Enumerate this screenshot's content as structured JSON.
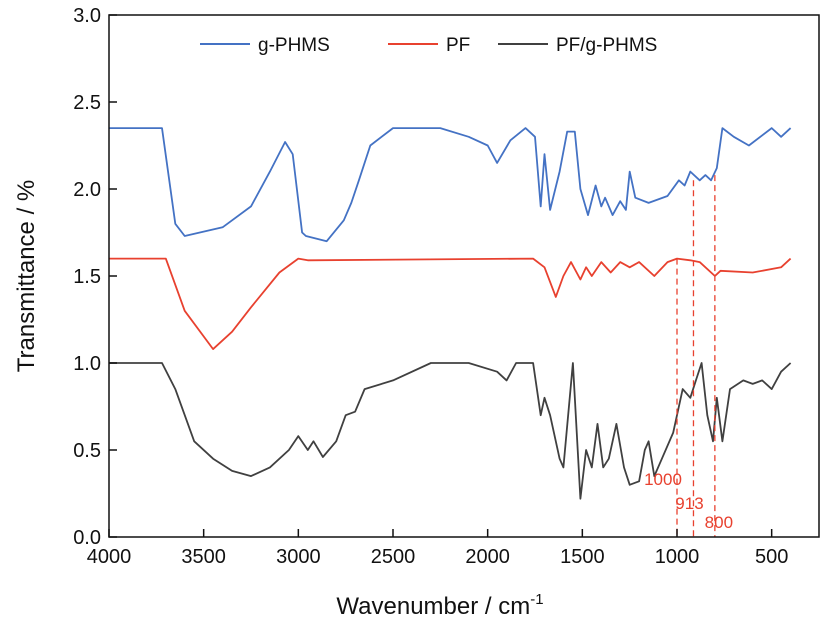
{
  "chart_data": {
    "type": "line",
    "title": "",
    "xlabel": "Wavenumber / cm",
    "xlabel_sup": "-1",
    "ylabel": "Transmittance / %",
    "xlim": [
      4000,
      250
    ],
    "ylim": [
      0,
      3.0
    ],
    "xticks": [
      "4000",
      "3500",
      "3000",
      "2500",
      "2000",
      "1500",
      "1000",
      "500"
    ],
    "xtick_values": [
      4000,
      3500,
      3000,
      2500,
      2000,
      1500,
      1000,
      500
    ],
    "yticks": [
      "0.0",
      "0.5",
      "1.0",
      "1.5",
      "2.0",
      "2.5",
      "3.0"
    ],
    "ytick_values": [
      0,
      0.5,
      1.0,
      1.5,
      2.0,
      2.5,
      3.0
    ],
    "legend_position": "top-center",
    "series": [
      {
        "name": "g-PHMS",
        "color": "#4472c4",
        "points": [
          [
            4000,
            2.35
          ],
          [
            3720,
            2.35
          ],
          [
            3650,
            1.8
          ],
          [
            3600,
            1.73
          ],
          [
            3400,
            1.78
          ],
          [
            3250,
            1.9
          ],
          [
            3150,
            2.1
          ],
          [
            3070,
            2.27
          ],
          [
            3030,
            2.2
          ],
          [
            2980,
            1.75
          ],
          [
            2960,
            1.73
          ],
          [
            2850,
            1.7
          ],
          [
            2760,
            1.82
          ],
          [
            2720,
            1.92
          ],
          [
            2680,
            2.05
          ],
          [
            2620,
            2.25
          ],
          [
            2500,
            2.35
          ],
          [
            2250,
            2.35
          ],
          [
            2100,
            2.3
          ],
          [
            2000,
            2.25
          ],
          [
            1950,
            2.15
          ],
          [
            1880,
            2.28
          ],
          [
            1800,
            2.35
          ],
          [
            1750,
            2.3
          ],
          [
            1720,
            1.9
          ],
          [
            1700,
            2.2
          ],
          [
            1670,
            1.88
          ],
          [
            1620,
            2.1
          ],
          [
            1580,
            2.33
          ],
          [
            1540,
            2.33
          ],
          [
            1510,
            2.0
          ],
          [
            1470,
            1.85
          ],
          [
            1430,
            2.02
          ],
          [
            1400,
            1.9
          ],
          [
            1380,
            1.95
          ],
          [
            1340,
            1.85
          ],
          [
            1300,
            1.93
          ],
          [
            1270,
            1.88
          ],
          [
            1250,
            2.1
          ],
          [
            1220,
            1.95
          ],
          [
            1150,
            1.92
          ],
          [
            1050,
            1.96
          ],
          [
            990,
            2.05
          ],
          [
            960,
            2.02
          ],
          [
            930,
            2.1
          ],
          [
            880,
            2.05
          ],
          [
            850,
            2.08
          ],
          [
            820,
            2.05
          ],
          [
            790,
            2.12
          ],
          [
            760,
            2.35
          ],
          [
            700,
            2.3
          ],
          [
            620,
            2.25
          ],
          [
            500,
            2.35
          ],
          [
            450,
            2.3
          ],
          [
            400,
            2.35
          ]
        ]
      },
      {
        "name": "PF",
        "color": "#e8412f",
        "points": [
          [
            4000,
            1.6
          ],
          [
            3700,
            1.6
          ],
          [
            3600,
            1.3
          ],
          [
            3450,
            1.08
          ],
          [
            3350,
            1.18
          ],
          [
            3250,
            1.32
          ],
          [
            3100,
            1.52
          ],
          [
            3000,
            1.6
          ],
          [
            2950,
            1.59
          ],
          [
            1760,
            1.6
          ],
          [
            1700,
            1.55
          ],
          [
            1640,
            1.38
          ],
          [
            1600,
            1.5
          ],
          [
            1560,
            1.58
          ],
          [
            1510,
            1.48
          ],
          [
            1480,
            1.55
          ],
          [
            1450,
            1.5
          ],
          [
            1400,
            1.58
          ],
          [
            1350,
            1.52
          ],
          [
            1300,
            1.58
          ],
          [
            1250,
            1.55
          ],
          [
            1200,
            1.58
          ],
          [
            1120,
            1.5
          ],
          [
            1050,
            1.58
          ],
          [
            1000,
            1.6
          ],
          [
            930,
            1.59
          ],
          [
            880,
            1.58
          ],
          [
            800,
            1.5
          ],
          [
            770,
            1.53
          ],
          [
            600,
            1.52
          ],
          [
            450,
            1.55
          ],
          [
            400,
            1.6
          ]
        ]
      },
      {
        "name": "PF/g-PHMS",
        "color": "#404040",
        "points": [
          [
            4000,
            1.0
          ],
          [
            3720,
            1.0
          ],
          [
            3650,
            0.85
          ],
          [
            3550,
            0.55
          ],
          [
            3450,
            0.45
          ],
          [
            3350,
            0.38
          ],
          [
            3250,
            0.35
          ],
          [
            3150,
            0.4
          ],
          [
            3050,
            0.5
          ],
          [
            3000,
            0.58
          ],
          [
            2950,
            0.5
          ],
          [
            2920,
            0.55
          ],
          [
            2870,
            0.46
          ],
          [
            2800,
            0.55
          ],
          [
            2750,
            0.7
          ],
          [
            2700,
            0.72
          ],
          [
            2650,
            0.85
          ],
          [
            2500,
            0.9
          ],
          [
            2300,
            1.0
          ],
          [
            2100,
            1.0
          ],
          [
            1950,
            0.95
          ],
          [
            1900,
            0.9
          ],
          [
            1850,
            1.0
          ],
          [
            1760,
            1.0
          ],
          [
            1720,
            0.7
          ],
          [
            1700,
            0.8
          ],
          [
            1670,
            0.7
          ],
          [
            1620,
            0.45
          ],
          [
            1600,
            0.4
          ],
          [
            1550,
            1.0
          ],
          [
            1510,
            0.22
          ],
          [
            1480,
            0.5
          ],
          [
            1450,
            0.4
          ],
          [
            1420,
            0.65
          ],
          [
            1390,
            0.4
          ],
          [
            1360,
            0.45
          ],
          [
            1320,
            0.65
          ],
          [
            1280,
            0.4
          ],
          [
            1250,
            0.3
          ],
          [
            1200,
            0.32
          ],
          [
            1170,
            0.5
          ],
          [
            1150,
            0.55
          ],
          [
            1120,
            0.35
          ],
          [
            1080,
            0.45
          ],
          [
            1020,
            0.6
          ],
          [
            970,
            0.85
          ],
          [
            930,
            0.8
          ],
          [
            900,
            0.9
          ],
          [
            870,
            1.0
          ],
          [
            840,
            0.7
          ],
          [
            810,
            0.55
          ],
          [
            790,
            0.8
          ],
          [
            760,
            0.55
          ],
          [
            720,
            0.85
          ],
          [
            650,
            0.9
          ],
          [
            600,
            0.88
          ],
          [
            550,
            0.9
          ],
          [
            500,
            0.85
          ],
          [
            450,
            0.95
          ],
          [
            400,
            1.0
          ]
        ]
      }
    ],
    "annotations": [
      {
        "text": "1000",
        "x": 1000,
        "y_top": 1.6
      },
      {
        "text": "913",
        "x": 913,
        "y_top": 2.05
      },
      {
        "text": "800",
        "x": 800,
        "y_top": 2.08
      }
    ],
    "annotation_color": "#e8412f"
  }
}
